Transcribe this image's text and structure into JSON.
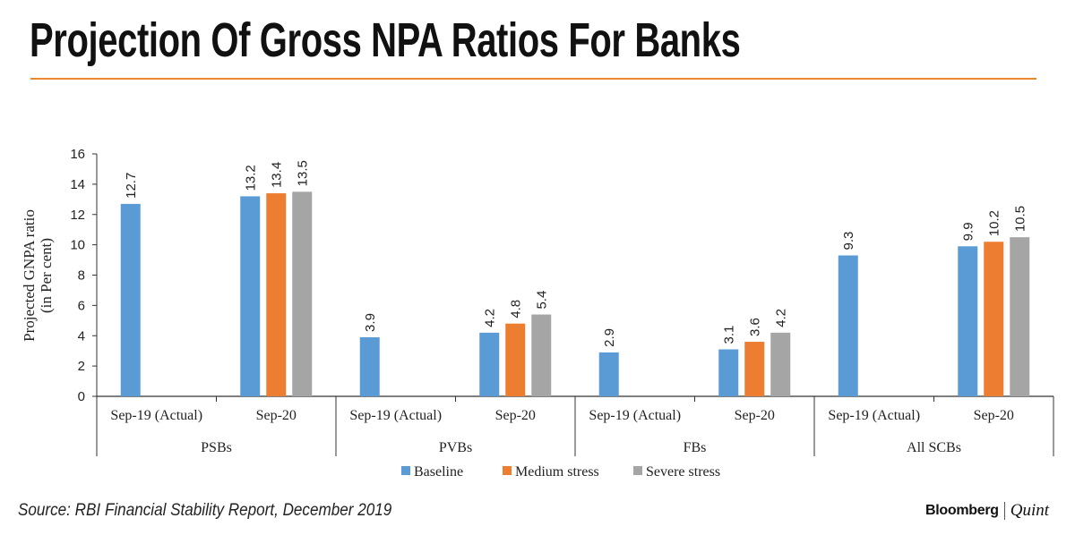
{
  "title": "Projection Of Gross NPA Ratios For Banks",
  "source": "Source: RBI Financial Stability Report, December 2019",
  "logo": {
    "brand": "Bloomberg",
    "sub": "Quint"
  },
  "chart_data": {
    "type": "bar",
    "ylabel": [
      "Projected GNPA ratio",
      "(in Per cent)"
    ],
    "ylim": [
      0,
      16
    ],
    "yticks": [
      0,
      2,
      4,
      6,
      8,
      10,
      12,
      14,
      16
    ],
    "groups": [
      {
        "name": "PSBs",
        "categories": [
          {
            "label": "Sep-19 (Actual)",
            "values": [
              12.7,
              null,
              null
            ]
          },
          {
            "label": "Sep-20",
            "values": [
              13.2,
              13.4,
              13.5
            ]
          }
        ]
      },
      {
        "name": "PVBs",
        "categories": [
          {
            "label": "Sep-19 (Actual)",
            "values": [
              3.9,
              null,
              null
            ]
          },
          {
            "label": "Sep-20",
            "values": [
              4.2,
              4.8,
              5.4
            ]
          }
        ]
      },
      {
        "name": "FBs",
        "categories": [
          {
            "label": "Sep-19 (Actual)",
            "values": [
              2.9,
              null,
              null
            ]
          },
          {
            "label": "Sep-20",
            "values": [
              3.1,
              3.6,
              4.2
            ]
          }
        ]
      },
      {
        "name": "All SCBs",
        "categories": [
          {
            "label": "Sep-19 (Actual)",
            "values": [
              9.3,
              null,
              null
            ]
          },
          {
            "label": "Sep-20",
            "values": [
              9.9,
              10.2,
              10.5
            ]
          }
        ]
      }
    ],
    "series": [
      {
        "name": "Baseline",
        "color": "#5b9bd5"
      },
      {
        "name": "Medium stress",
        "color": "#ed7d31"
      },
      {
        "name": "Severe stress",
        "color": "#a5a5a5"
      }
    ],
    "legend": "bottom",
    "grid": false,
    "data_labels": true
  }
}
